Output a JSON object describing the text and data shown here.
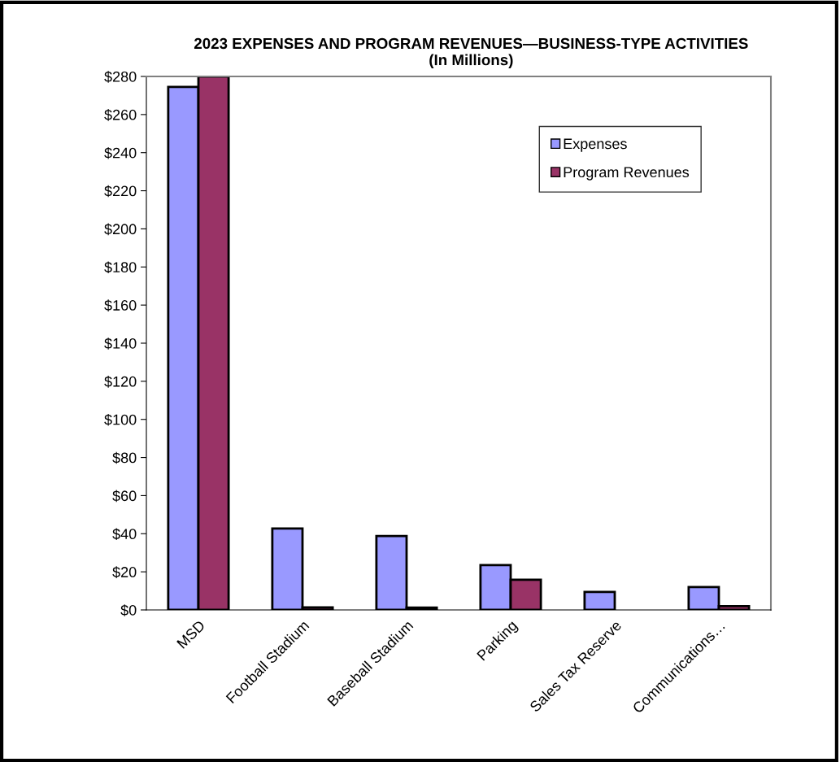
{
  "chart_data": {
    "type": "bar",
    "title": "2023 EXPENSES AND PROGRAM REVENUES—BUSINESS-TYPE ACTIVITIES\n(In Millions)",
    "categories": [
      "MSD",
      "Football Stadium",
      "Baseball Stadium",
      "Parking",
      "Sales Tax Reserve",
      "Communications…"
    ],
    "series": [
      {
        "name": "Expenses",
        "color": "#9999ff",
        "values": [
          274.5,
          42.7,
          38.8,
          23.5,
          9.4,
          12
        ]
      },
      {
        "name": "Program Revenues",
        "color": "#993366",
        "values": [
          280,
          1.3,
          1.2,
          15.8,
          null,
          2
        ]
      }
    ],
    "ylim": [
      0,
      280
    ],
    "yticks": [
      {
        "value": 0,
        "label": "$0"
      },
      {
        "value": 20,
        "label": "$20"
      },
      {
        "value": 40,
        "label": "$40"
      },
      {
        "value": 60,
        "label": "$60"
      },
      {
        "value": 80,
        "label": "$80"
      },
      {
        "value": 100,
        "label": "$100"
      },
      {
        "value": 120,
        "label": "$120"
      },
      {
        "value": 140,
        "label": "$140"
      },
      {
        "value": 160,
        "label": "$160"
      },
      {
        "value": 180,
        "label": "$180"
      },
      {
        "value": 200,
        "label": "$200"
      },
      {
        "value": 220,
        "label": "$220"
      },
      {
        "value": 240,
        "label": "$240"
      },
      {
        "value": 260,
        "label": "$260"
      },
      {
        "value": 280,
        "label": "$280"
      }
    ],
    "grid": false,
    "legend": "top right"
  }
}
